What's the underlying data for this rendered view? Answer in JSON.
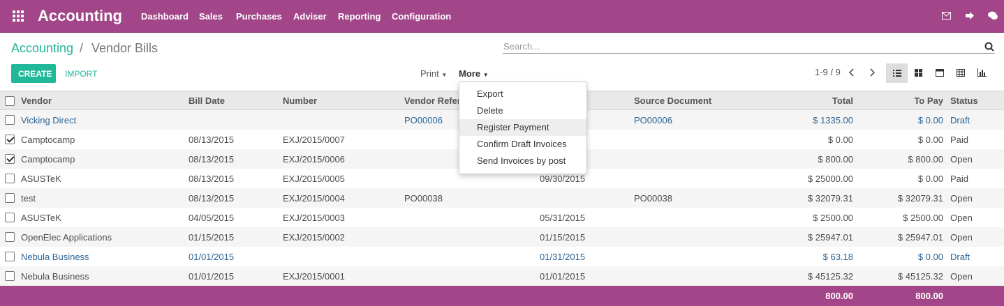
{
  "app": {
    "name": "Accounting",
    "menu": [
      "Dashboard",
      "Sales",
      "Purchases",
      "Adviser",
      "Reporting",
      "Configuration"
    ]
  },
  "breadcrumb": {
    "parent": "Accounting",
    "separator": "/",
    "current": "Vendor Bills"
  },
  "search": {
    "placeholder": "Search..."
  },
  "buttons": {
    "create": "CREATE",
    "import": "IMPORT"
  },
  "toolbar": {
    "print": "Print",
    "more": "More"
  },
  "pager": "1-9 / 9",
  "dropdown": {
    "items": [
      "Export",
      "Delete",
      "Register Payment",
      "Confirm Draft Invoices",
      "Send Invoices by post"
    ],
    "highlighted": 2
  },
  "table": {
    "columns": [
      "Vendor",
      "Bill Date",
      "Number",
      "Vendor Reference",
      null,
      "Source Document",
      "Total",
      "To Pay",
      "Status"
    ],
    "rows": [
      {
        "checked": false,
        "color": "#2c6596",
        "cells": [
          "Vicking Direct",
          null,
          null,
          "PO00006",
          null,
          "PO00006",
          "$ 1335.00",
          "$ 0.00",
          "Draft"
        ]
      },
      {
        "checked": true,
        "color": "#4c4c4c",
        "cells": [
          "Camptocamp",
          "08/13/2015",
          "EXJ/2015/0007",
          null,
          null,
          null,
          "$ 0.00",
          "$ 0.00",
          "Paid"
        ]
      },
      {
        "checked": true,
        "color": "#4c4c4c",
        "cells": [
          "Camptocamp",
          "08/13/2015",
          "EXJ/2015/0006",
          null,
          null,
          null,
          "$ 800.00",
          "$ 800.00",
          "Open"
        ]
      },
      {
        "checked": false,
        "color": "#4c4c4c",
        "cells": [
          "ASUSTeK",
          "08/13/2015",
          "EXJ/2015/0005",
          null,
          "09/30/2015",
          null,
          "$ 25000.00",
          "$ 0.00",
          "Paid"
        ]
      },
      {
        "checked": false,
        "color": "#4c4c4c",
        "cells": [
          "test",
          "08/13/2015",
          "EXJ/2015/0004",
          "PO00038",
          null,
          "PO00038",
          "$ 32079.31",
          "$ 32079.31",
          "Open"
        ]
      },
      {
        "checked": false,
        "color": "#4c4c4c",
        "cells": [
          "ASUSTeK",
          "04/05/2015",
          "EXJ/2015/0003",
          null,
          "05/31/2015",
          null,
          "$ 2500.00",
          "$ 2500.00",
          "Open"
        ]
      },
      {
        "checked": false,
        "color": "#4c4c4c",
        "cells": [
          "OpenElec Applications",
          "01/15/2015",
          "EXJ/2015/0002",
          null,
          "01/15/2015",
          null,
          "$ 25947.01",
          "$ 25947.01",
          "Open"
        ]
      },
      {
        "checked": false,
        "color": "#2c6596",
        "cells": [
          "Nebula Business",
          "01/01/2015",
          null,
          null,
          "01/31/2015",
          null,
          "$ 63.18",
          "$ 0.00",
          "Draft"
        ]
      },
      {
        "checked": false,
        "color": "#4c4c4c",
        "cells": [
          "Nebula Business",
          "01/01/2015",
          "EXJ/2015/0001",
          null,
          "01/01/2015",
          null,
          "$ 45125.32",
          "$ 45125.32",
          "Open"
        ]
      }
    ],
    "footer": {
      "total": "800.00",
      "to_pay": "800.00"
    }
  }
}
